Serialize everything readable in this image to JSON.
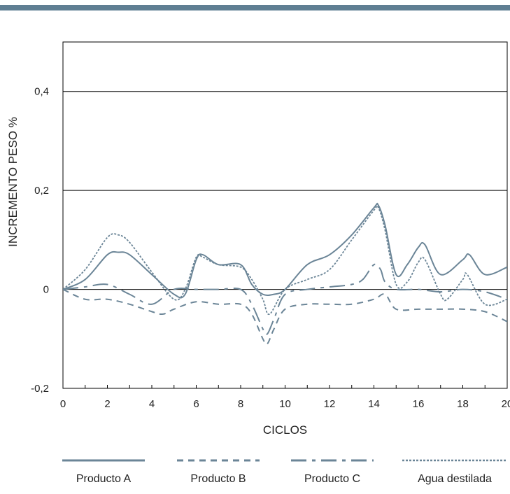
{
  "colors": {
    "band": "#5f7f93",
    "series": "#6b8597",
    "axis": "#000000"
  },
  "chart_data": {
    "type": "line",
    "title": "",
    "xlabel": "CICLOS",
    "ylabel": "INCREMENTO PESO %",
    "xlim": [
      0,
      20
    ],
    "ylim": [
      -0.2,
      0.5
    ],
    "x_ticks": [
      {
        "v": 0,
        "label": "0"
      },
      {
        "v": 2,
        "label": "2"
      },
      {
        "v": 4,
        "label": "4"
      },
      {
        "v": 6,
        "label": "6"
      },
      {
        "v": 8,
        "label": "8"
      },
      {
        "v": 10,
        "label": "10"
      },
      {
        "v": 12,
        "label": "12"
      },
      {
        "v": 14,
        "label": "14"
      },
      {
        "v": 16,
        "label": "16"
      },
      {
        "v": 18,
        "label": "18"
      },
      {
        "v": 20,
        "label": "20"
      }
    ],
    "y_ticks": [
      {
        "v": -0.2,
        "label": "-0,2"
      },
      {
        "v": 0,
        "label": "0"
      },
      {
        "v": 0.2,
        "label": "0,2"
      },
      {
        "v": 0.4,
        "label": "0,4"
      }
    ],
    "gridlines_y": [
      0,
      0.2,
      0.4
    ],
    "legend_position": "bottom",
    "series": [
      {
        "name": "Producto A",
        "style": "solid",
        "x": [
          0,
          1,
          2,
          2.5,
          3,
          4,
          5,
          5.5,
          6,
          6.3,
          7,
          8,
          8.5,
          9,
          9.5,
          10,
          11,
          12,
          13,
          14,
          14.2,
          14.5,
          15,
          15.5,
          16,
          16.3,
          17,
          18,
          18.3,
          19,
          20
        ],
        "y": [
          0,
          0.02,
          0.07,
          0.075,
          0.07,
          0.03,
          -0.01,
          -0.01,
          0.06,
          0.07,
          0.05,
          0.05,
          0.01,
          -0.01,
          -0.01,
          0.0,
          0.05,
          0.07,
          0.11,
          0.165,
          0.17,
          0.13,
          0.03,
          0.05,
          0.085,
          0.09,
          0.03,
          0.06,
          0.07,
          0.03,
          0.045
        ]
      },
      {
        "name": "Producto B",
        "style": "dashed",
        "x": [
          0,
          1,
          2,
          3,
          4,
          4.5,
          5,
          6,
          7,
          8,
          8.5,
          9,
          9.2,
          9.5,
          10,
          11,
          12,
          13,
          14,
          14.5,
          15,
          16,
          17,
          18,
          19,
          20
        ],
        "y": [
          0,
          -0.02,
          -0.02,
          -0.03,
          -0.045,
          -0.05,
          -0.04,
          -0.025,
          -0.03,
          -0.03,
          -0.05,
          -0.1,
          -0.11,
          -0.08,
          -0.04,
          -0.03,
          -0.03,
          -0.03,
          -0.02,
          -0.01,
          -0.04,
          -0.04,
          -0.04,
          -0.04,
          -0.045,
          -0.065
        ]
      },
      {
        "name": "Producto C",
        "style": "dashdot",
        "x": [
          0,
          1,
          2,
          3,
          4,
          5,
          6,
          7,
          8,
          8.5,
          9,
          9.2,
          9.5,
          10,
          11,
          12,
          13,
          13.5,
          14,
          14.3,
          14.5,
          15,
          16,
          17,
          18,
          19,
          20
        ],
        "y": [
          0,
          0.005,
          0.01,
          -0.01,
          -0.03,
          0.0,
          0.0,
          0.0,
          0.0,
          -0.03,
          -0.08,
          -0.09,
          -0.06,
          -0.01,
          0.0,
          0.005,
          0.01,
          0.02,
          0.05,
          0.04,
          0.015,
          0.0,
          0.0,
          -0.005,
          0.0,
          -0.005,
          -0.02
        ]
      },
      {
        "name": "Agua destilada",
        "style": "dotted",
        "x": [
          0,
          1,
          2,
          2.5,
          3,
          4,
          5,
          5.5,
          6,
          6.3,
          7,
          8,
          8.5,
          9,
          9.3,
          10,
          11,
          12,
          13,
          14,
          14.2,
          14.5,
          15,
          15.5,
          16,
          16.3,
          17,
          17.3,
          18,
          18.2,
          19,
          20
        ],
        "y": [
          0,
          0.04,
          0.105,
          0.11,
          0.095,
          0.035,
          -0.02,
          0.0,
          0.065,
          0.065,
          0.05,
          0.045,
          0.02,
          -0.02,
          -0.05,
          0.0,
          0.02,
          0.04,
          0.1,
          0.16,
          0.165,
          0.12,
          0.01,
          0.015,
          0.055,
          0.06,
          -0.01,
          -0.02,
          0.02,
          0.03,
          -0.03,
          -0.02
        ]
      }
    ]
  }
}
